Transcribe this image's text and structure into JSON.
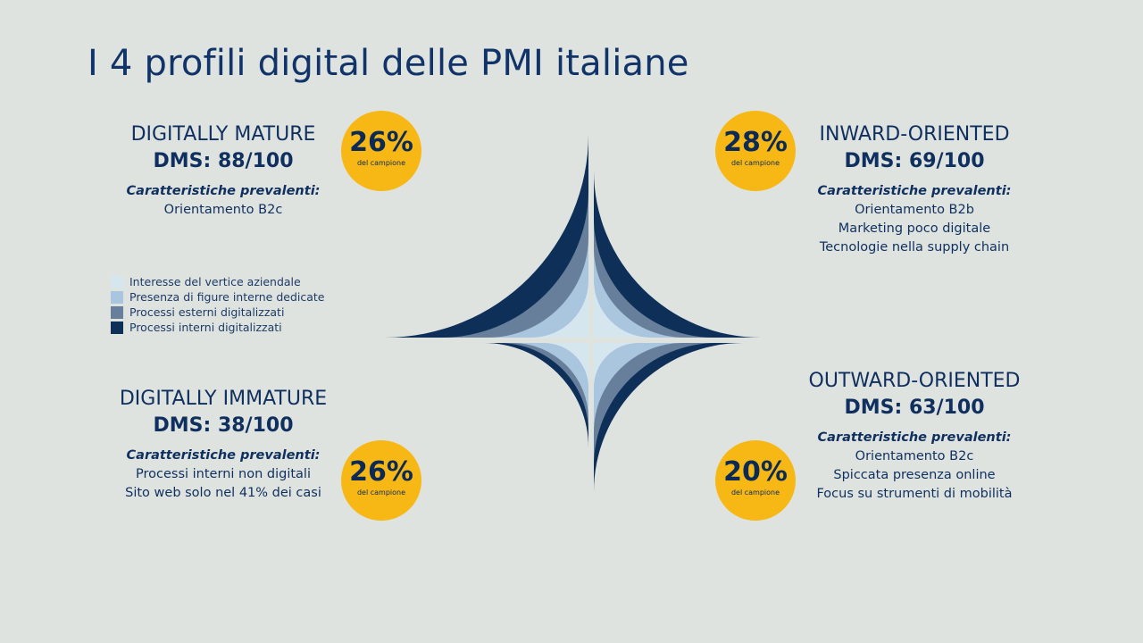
{
  "title": "I 4 profili digital delle PMI italiane",
  "badge_sub": "del campione",
  "colors": {
    "ring_1": "#d6e6ef",
    "ring_2": "#aac5de",
    "ring_3": "#687f9b",
    "ring_4": "#0d2f58",
    "badge": "#f7b815",
    "text": "#0f2f5f"
  },
  "legend": [
    {
      "label": "Interesse del vertice aziendale",
      "color": "#d6e6ef"
    },
    {
      "label": "Presenza di figure interne dedicate",
      "color": "#aac5de"
    },
    {
      "label": "Processi esterni digitalizzati",
      "color": "#687f9b"
    },
    {
      "label": "Processi interni digitalizzati",
      "color": "#0d2f58"
    }
  ],
  "profiles": {
    "mature": {
      "name": "DIGITALLY MATURE",
      "dms": "DMS: 88/100",
      "pct": "26%",
      "char_title": "Caratteristiche prevalenti:",
      "traits": [
        "Orientamento B2c"
      ]
    },
    "inward": {
      "name": "INWARD-ORIENTED",
      "dms": "DMS: 69/100",
      "pct": "28%",
      "char_title": "Caratteristiche prevalenti:",
      "traits": [
        "Orientamento B2b",
        "Marketing poco digitale",
        "Tecnologie nella supply chain"
      ]
    },
    "immature": {
      "name": "DIGITALLY IMMATURE",
      "dms": "DMS: 38/100",
      "pct": "26%",
      "char_title": "Caratteristiche prevalenti:",
      "traits": [
        "Processi interni non digitali",
        "Sito web solo nel 41% dei casi"
      ]
    },
    "outward": {
      "name": "OUTWARD-ORIENTED",
      "dms": "DMS: 63/100",
      "pct": "20%",
      "char_title": "Caratteristiche prevalenti:",
      "traits": [
        "Orientamento B2c",
        "Spiccata presenza online",
        "Focus su strumenti di mobilità"
      ]
    }
  }
}
